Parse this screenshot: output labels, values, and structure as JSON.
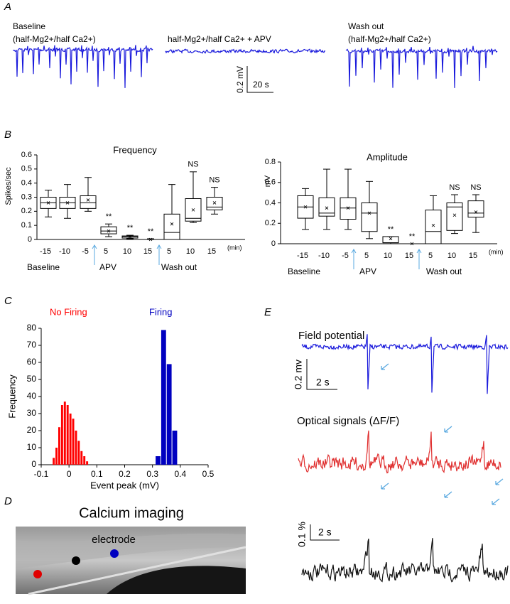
{
  "figure": {
    "panels": [
      "A",
      "B",
      "C",
      "D",
      "E"
    ],
    "a_baseline": "Baseline",
    "a_baseline_sub": "(half-Mg2+/half Ca2+)",
    "a_apv": "half-Mg2+/half Ca2+ + APV",
    "a_wash": "Wash out",
    "a_wash_sub": "(half-Mg2+/half Ca2+)",
    "a_scale_v": "0.2 mV",
    "a_scale_t": "20 s",
    "d_title": "Calcium imaging",
    "d_electrode": "electrode",
    "e_field": "Field potential",
    "e_field_scale_v": "0.2 mv",
    "e_field_scale_t": "2 s",
    "e_optical": "Optical signals (ΔF/F)",
    "e_optical_scale_v": "0.1 %",
    "e_optical_scale_t": "2 s"
  },
  "chart_data": [
    {
      "type": "box",
      "title": "Frequency",
      "y_label": "Spikes/sec",
      "x_unit": "(min)",
      "categories": [
        "-15",
        "-10",
        "-5",
        "5",
        "10",
        "15",
        "5",
        "10",
        "15"
      ],
      "groups": [
        "Baseline",
        "APV",
        "Wash out"
      ],
      "min": [
        0.16,
        0.15,
        0.2,
        0.02,
        0.005,
        0,
        0,
        0.12,
        0.18
      ],
      "q1": [
        0.22,
        0.22,
        0.22,
        0.04,
        0.01,
        0,
        0,
        0.13,
        0.21
      ],
      "median": [
        0.26,
        0.26,
        0.26,
        0.06,
        0.02,
        0,
        0.05,
        0.15,
        0.23
      ],
      "q3": [
        0.3,
        0.3,
        0.31,
        0.09,
        0.025,
        0,
        0.18,
        0.29,
        0.3
      ],
      "max": [
        0.35,
        0.39,
        0.44,
        0.11,
        0.03,
        0.005,
        0.39,
        0.48,
        0.37
      ],
      "mean": [
        0.26,
        0.26,
        0.28,
        0.06,
        0.02,
        0,
        0.11,
        0.21,
        0.26
      ],
      "annotations": [
        null,
        null,
        null,
        "**",
        "**",
        "**",
        null,
        "NS",
        "NS"
      ],
      "ylim": [
        0,
        0.6
      ],
      "yticks": [
        0,
        0.1,
        0.2,
        0.3,
        0.4,
        0.5,
        0.6
      ],
      "color": "#000000",
      "arrow_color": "#5aa9e0"
    },
    {
      "type": "box",
      "title": "Amplitude",
      "y_label": "mV",
      "x_unit": "(min)",
      "categories": [
        "-15",
        "-10",
        "-5",
        "5",
        "10",
        "15",
        "5",
        "10",
        "15"
      ],
      "groups": [
        "Baseline",
        "APV",
        "Wash out"
      ],
      "min": [
        0.14,
        0.14,
        0.14,
        0.05,
        0,
        0,
        0,
        0.1,
        0.11
      ],
      "q1": [
        0.25,
        0.27,
        0.24,
        0.12,
        0.01,
        0,
        0,
        0.13,
        0.26
      ],
      "median": [
        0.36,
        0.3,
        0.35,
        0.3,
        0.01,
        0,
        0.12,
        0.36,
        0.3
      ],
      "q3": [
        0.47,
        0.45,
        0.45,
        0.4,
        0.07,
        0,
        0.33,
        0.4,
        0.42
      ],
      "max": [
        0.54,
        0.73,
        0.73,
        0.61,
        0.07,
        0,
        0.47,
        0.48,
        0.48
      ],
      "mean": [
        0.36,
        0.35,
        0.35,
        0.3,
        0.05,
        0,
        0.18,
        0.28,
        0.31
      ],
      "annotations": [
        null,
        null,
        null,
        null,
        "**",
        "**",
        null,
        "NS",
        "NS"
      ],
      "ylim": [
        0,
        0.8
      ],
      "yticks": [
        0,
        0.2,
        0.4,
        0.6,
        0.8
      ],
      "color": "#000000",
      "arrow_color": "#5aa9e0"
    },
    {
      "type": "histogram",
      "x_label": "Event peak (mV)",
      "y_label": "Frequency",
      "series": [
        {
          "name": "No Firing",
          "color": "#ff0000",
          "bins": [
            -0.06,
            -0.05,
            -0.04,
            -0.03,
            -0.02,
            -0.01,
            0,
            0.01,
            0.02,
            0.03,
            0.04,
            0.05,
            0.06,
            0.07
          ],
          "counts": [
            4,
            10,
            22,
            35,
            37,
            35,
            30,
            27,
            20,
            14,
            8,
            5,
            2
          ]
        },
        {
          "name": "Firing",
          "color": "#0000c0",
          "bins": [
            0.31,
            0.33,
            0.35,
            0.37,
            0.39
          ],
          "counts": [
            5,
            79,
            59,
            20
          ]
        }
      ],
      "xlim": [
        -0.1,
        0.5
      ],
      "xticks": [
        -0.1,
        0,
        0.1,
        0.2,
        0.3,
        0.4,
        0.5
      ],
      "ylim": [
        0,
        80
      ],
      "yticks": [
        0,
        10,
        20,
        30,
        40,
        50,
        60,
        70,
        80
      ]
    }
  ]
}
